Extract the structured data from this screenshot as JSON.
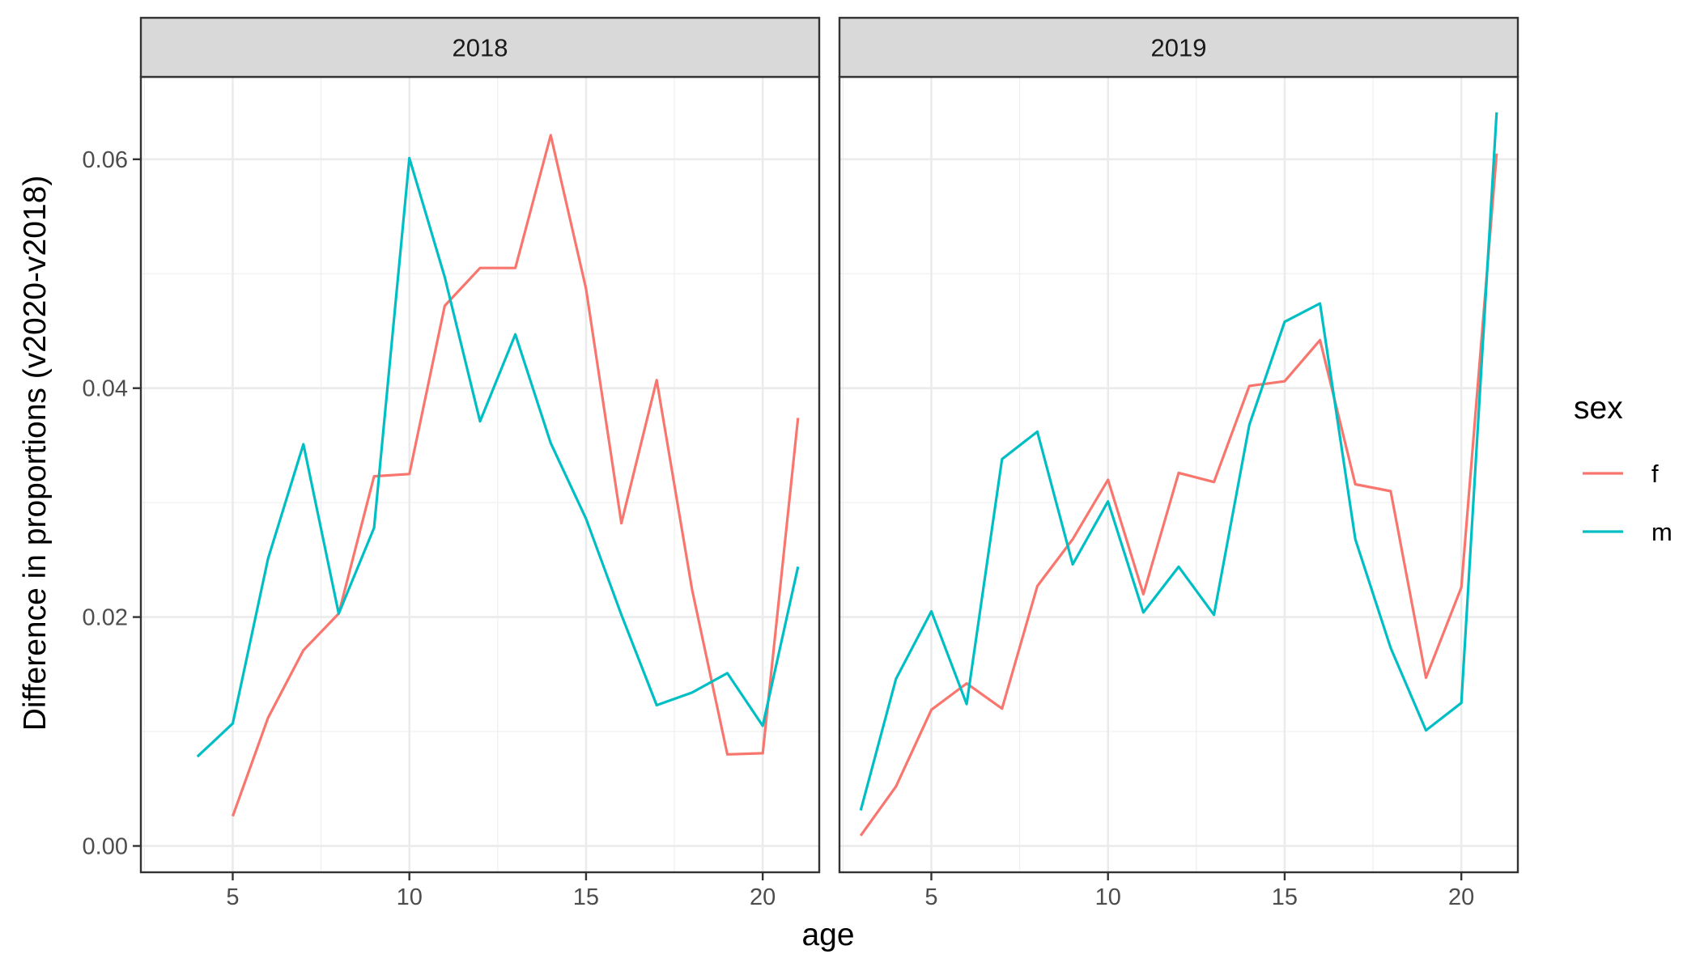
{
  "chart_data": {
    "type": "line",
    "xlabel": "age",
    "ylabel": "Difference in proportions (v2020-v2018)",
    "xlim": [
      2.4,
      21.6
    ],
    "ylim": [
      -0.0023,
      0.0672
    ],
    "x_ticks": [
      5,
      10,
      15,
      20
    ],
    "y_ticks": [
      0,
      0.02,
      0.04,
      0.06
    ],
    "y_tick_labels": [
      "0.00",
      "0.02",
      "0.04",
      "0.06"
    ],
    "grid": true,
    "legend": {
      "title": "sex",
      "position": "right",
      "entries": [
        {
          "label": "f",
          "color": "#F8766D"
        },
        {
          "label": "m",
          "color": "#00BFC4"
        }
      ]
    },
    "panels": [
      {
        "strip": "2018",
        "series": [
          {
            "name": "f",
            "color": "#F8766D",
            "x": [
              5,
              6,
              7,
              8,
              9,
              10,
              11,
              12,
              13,
              14,
              15,
              16,
              17,
              18,
              19,
              20,
              21
            ],
            "y": [
              0.0026,
              0.0112,
              0.0171,
              0.0203,
              0.0323,
              0.0325,
              0.0472,
              0.0505,
              0.0505,
              0.0621,
              0.0487,
              0.0282,
              0.0407,
              0.0224,
              0.008,
              0.0081,
              0.0374
            ]
          },
          {
            "name": "m",
            "color": "#00BFC4",
            "x": [
              4,
              5,
              6,
              7,
              8,
              9,
              10,
              11,
              12,
              13,
              14,
              15,
              16,
              17,
              18,
              19,
              20,
              21
            ],
            "y": [
              0.0078,
              0.0107,
              0.0251,
              0.0351,
              0.0203,
              0.0278,
              0.0601,
              0.0497,
              0.0371,
              0.0447,
              0.0352,
              0.0286,
              0.0202,
              0.0123,
              0.0134,
              0.0151,
              0.0105,
              0.0244
            ]
          }
        ]
      },
      {
        "strip": "2019",
        "series": [
          {
            "name": "f",
            "color": "#F8766D",
            "x": [
              3,
              4,
              5,
              6,
              7,
              8,
              9,
              10,
              11,
              12,
              13,
              14,
              15,
              16,
              17,
              18,
              19,
              20,
              21
            ],
            "y": [
              0.0009,
              0.0052,
              0.0119,
              0.0142,
              0.012,
              0.0227,
              0.0268,
              0.032,
              0.022,
              0.0326,
              0.0318,
              0.0402,
              0.0406,
              0.0442,
              0.0316,
              0.031,
              0.0147,
              0.0226,
              0.0605
            ]
          },
          {
            "name": "m",
            "color": "#00BFC4",
            "x": [
              3,
              4,
              5,
              6,
              7,
              8,
              9,
              10,
              11,
              12,
              13,
              14,
              15,
              16,
              17,
              18,
              19,
              20,
              21
            ],
            "y": [
              0.0031,
              0.0146,
              0.0205,
              0.0124,
              0.0338,
              0.0362,
              0.0246,
              0.0301,
              0.0204,
              0.0244,
              0.0202,
              0.0368,
              0.0458,
              0.0474,
              0.0268,
              0.0173,
              0.0101,
              0.0125,
              0.0641
            ]
          }
        ]
      }
    ]
  }
}
